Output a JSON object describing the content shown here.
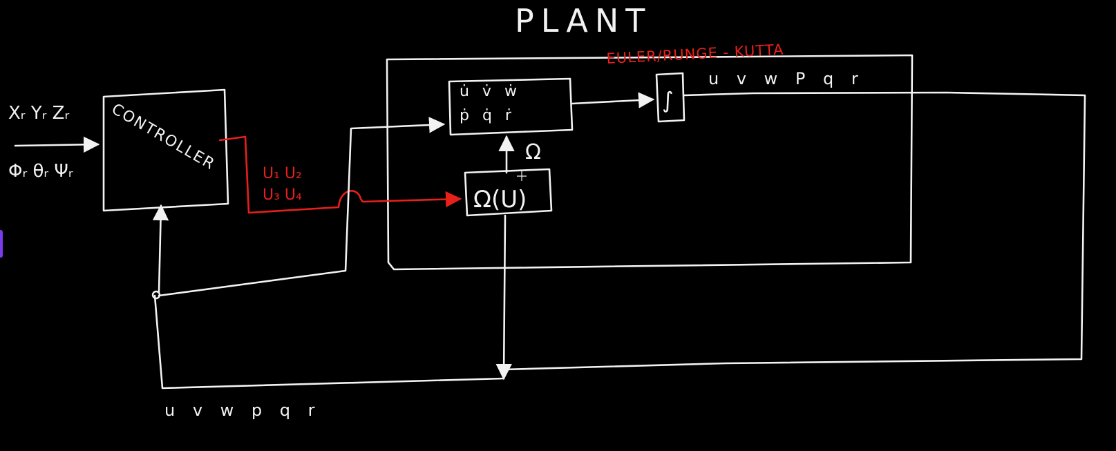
{
  "colors": {
    "background": "#000000",
    "ink": "#f2f2f2",
    "red_ink": "#e8201c",
    "edge_tab": "#7c3aed"
  },
  "labels": {
    "plant_title": "PLANT",
    "integrator_method": "EULER/RUNGE - KUTTA",
    "controller": "CONTROLLER",
    "reference_position": "Xᵣ Yᵣ Zᵣ",
    "reference_attitude": "Φᵣ θᵣ Ψᵣ",
    "control_inputs_row1": "U₁ U₂",
    "control_inputs_row2": "U₃ U₄",
    "dynamics_row1": "u̇ v̇ ẇ",
    "dynamics_row2": "ṗ q̇ ṙ",
    "rotor_speed_symbol": "Ω",
    "rotor_map": "Ω(U)",
    "integrator_symbol": "∫",
    "integrated_states": "u v w P q r",
    "feedback_states": "u v w p q r"
  }
}
